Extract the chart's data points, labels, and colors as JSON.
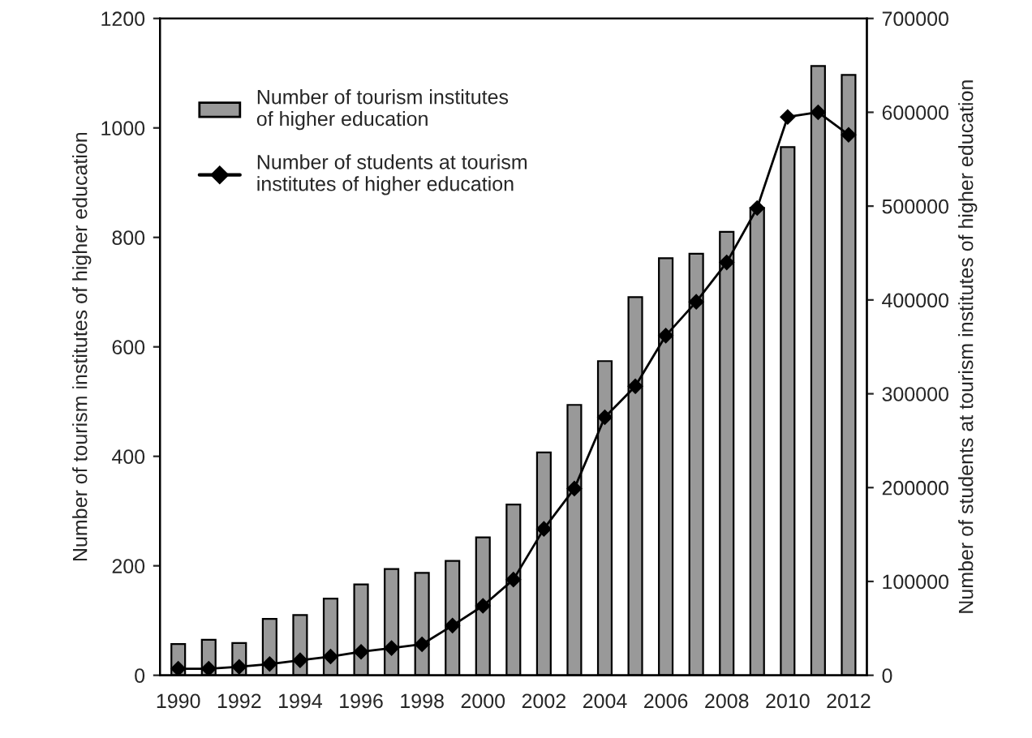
{
  "chart_data": {
    "type": "bar",
    "categories": [
      "1990",
      null,
      "1992",
      null,
      "1994",
      null,
      "1996",
      null,
      "1998",
      null,
      "2000",
      null,
      "2002",
      null,
      "2004",
      null,
      "2006",
      null,
      "2008",
      null,
      "2010",
      null,
      "2012"
    ],
    "series": [
      {
        "name": "Number of tourism institutes\nof higher education",
        "color": "#999999",
        "values": [
          57,
          65,
          59,
          103,
          110,
          140,
          166,
          194,
          187,
          209,
          252,
          312,
          407,
          494,
          574,
          691,
          762,
          770,
          810,
          854,
          965,
          1113,
          1097
        ]
      },
      {
        "name": "Number of students at tourism\ninstitutes of higher education",
        "type": "line",
        "axis": "y2",
        "color": "#000000",
        "marker": "diamond",
        "line_style": "solid",
        "values": [
          7000,
          7000,
          9000,
          12000,
          16000,
          20000,
          25000,
          29000,
          33000,
          53000,
          74000,
          102000,
          156000,
          199000,
          275000,
          308000,
          362000,
          398000,
          440000,
          498000,
          595000,
          600000,
          576000
        ]
      }
    ],
    "ylabel": "Number of tourism institutes of higher education",
    "y2label": "Number of students at tourism institutes of higher education",
    "ylim": [
      0,
      1200
    ],
    "yticks": [
      0,
      200,
      400,
      600,
      800,
      1000,
      1200
    ],
    "y2lim": [
      0,
      700000
    ],
    "y2ticks": [
      0,
      100000,
      200000,
      300000,
      400000,
      500000,
      600000,
      700000
    ],
    "grid": false,
    "legend": "top left"
  }
}
